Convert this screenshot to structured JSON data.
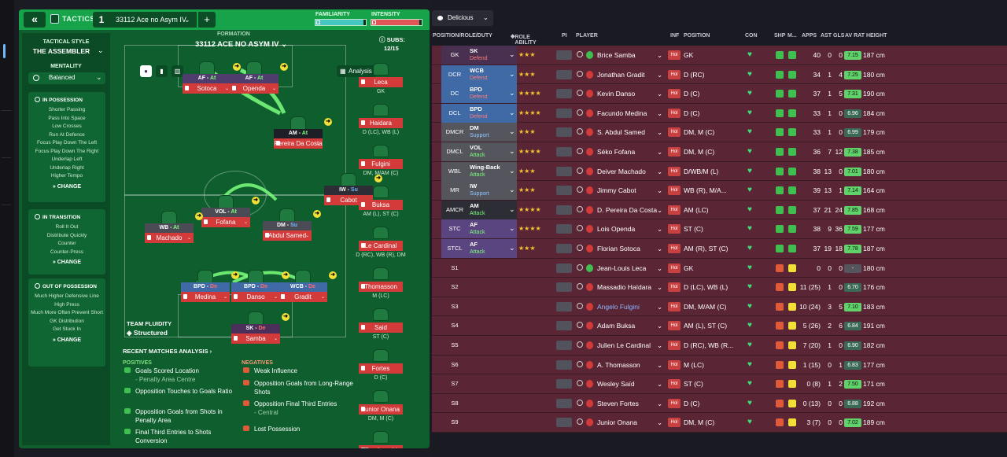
{
  "tactics_panel": {
    "back_icon": "«",
    "label": "TACTICS",
    "slot_number": "1",
    "tactic_name": "33112 Ace no Asym IV",
    "add": "+",
    "familiarity_label": "FAMILIARITY",
    "intensity_label": "INTENSITY",
    "familiarity_level": 0.95,
    "intensity_level": 0.95,
    "colors": {
      "panel": "#0e5e2e",
      "bar": "#16a34a",
      "familiarity": "#46c6c0",
      "intensity": "#e05555"
    }
  },
  "sidebar": {
    "tactical_style_label": "TACTICAL STYLE",
    "tactical_style_value": "THE ASSEMBLER",
    "mentality_label": "MENTALITY",
    "mentality_value": "Balanced",
    "in_possession": {
      "title": "IN POSSESSION",
      "items": [
        "Shorter Passing",
        "Pass Into Space",
        "Low Crosses",
        "Run At Defence",
        "Focus Play Down The Left",
        "Focus Play Down The Right",
        "Underlap Left",
        "Underlap Right",
        "Higher Tempo"
      ],
      "change": "CHANGE"
    },
    "in_transition": {
      "title": "IN TRANSITION",
      "items": [
        "Roll It Out",
        "Distribute Quickly",
        "Counter",
        "Counter-Press"
      ],
      "change": "CHANGE"
    },
    "out_of_possession": {
      "title": "OUT OF POSSESSION",
      "items": [
        "Much Higher Defensive Line",
        "High Press",
        "Much More Often Prevent Short GK Distribution",
        "Get Stuck In"
      ],
      "change": "CHANGE"
    }
  },
  "formation": {
    "label": "FORMATION",
    "name": "33112 ACE NO ASYM IV",
    "analysis_label": "Analysis",
    "subs_label": "SUBS:",
    "subs_count": "12/15",
    "team_fluidity_label": "TEAM FLUIDITY",
    "team_fluidity_value": "Structured",
    "players": [
      {
        "role": "AF",
        "duty": "At",
        "name": "Sotoca"
      },
      {
        "role": "AF",
        "duty": "At",
        "name": "Openda"
      },
      {
        "role": "AM",
        "duty": "At",
        "name": "Pereira Da Costa"
      },
      {
        "role": "IW",
        "duty": "Su",
        "name": "Cabot"
      },
      {
        "role": "VOL",
        "duty": "At",
        "name": "Fofana"
      },
      {
        "role": "WB",
        "duty": "At",
        "name": "Machado"
      },
      {
        "role": "DM",
        "duty": "Su",
        "name": "Abdul Samed"
      },
      {
        "role": "BPD",
        "duty": "De",
        "name": "Medina"
      },
      {
        "role": "BPD",
        "duty": "De",
        "name": "Danso"
      },
      {
        "role": "WCB",
        "duty": "De",
        "name": "Gradit"
      },
      {
        "role": "SK",
        "duty": "De",
        "name": "Samba"
      }
    ],
    "subs": [
      {
        "name": "Leca",
        "pos": "GK"
      },
      {
        "name": "Haidara",
        "pos": "D (LC), WB (L)"
      },
      {
        "name": "Fulgini",
        "pos": "DM, M/AM (C)"
      },
      {
        "name": "Buksa",
        "pos": "AM (L), ST (C)"
      },
      {
        "name": "Le Cardinal",
        "pos": "D (RC), WB (R), DM"
      },
      {
        "name": "Thomasson",
        "pos": "M (LC)"
      },
      {
        "name": "Said",
        "pos": "ST (C)"
      },
      {
        "name": "Fortes",
        "pos": "D (C)"
      },
      {
        "name": "Junior Onana",
        "pos": "DM, M (C)"
      },
      {
        "name": "Frankowski",
        "pos": ""
      }
    ]
  },
  "analysis": {
    "title": "RECENT MATCHES ANALYSIS",
    "positives_label": "POSITIVES",
    "negatives_label": "NEGATIVES",
    "positives": [
      {
        "text": "Goals Scored Location",
        "sub": "- Penalty Area Centre"
      },
      {
        "text": "Opposition Touches to Goals Ratio",
        "sub": ""
      },
      {
        "text": "Opposition Goals from Shots in Penalty Area",
        "sub": ""
      },
      {
        "text": "Final Third Entries to Shots Conversion",
        "sub": ""
      }
    ],
    "negatives": [
      {
        "text": "Weak Influence",
        "sub": ""
      },
      {
        "text": "Opposition Goals from Long-Range Shots",
        "sub": ""
      },
      {
        "text": "Opposition Final Third Entries",
        "sub": "- Central"
      },
      {
        "text": "Lost Possession",
        "sub": ""
      }
    ]
  },
  "squad": {
    "view_label": "Delicious",
    "headers": {
      "position": "POSITION/ROLE/DUTY",
      "role_ability": "ROLE ABILITY",
      "pi": "PI",
      "player": "PLAYER",
      "inf": "INF",
      "pos": "POSITION",
      "con": "CON",
      "shp": "SHP",
      "m": "M...",
      "apps": "APPS",
      "ast": "AST",
      "gls": "GLS",
      "avrat": "AV RAT",
      "height": "HEIGHT"
    },
    "rows": [
      {
        "slot": "GK",
        "role": "SK",
        "duty": "Defend",
        "stars": "★★★",
        "player": "Brice Samba",
        "inf": "Hol",
        "pos": "GK",
        "apps": "40",
        "ast": "0",
        "gls": "0",
        "rat": "7.15",
        "height": "187 cm"
      },
      {
        "slot": "DCR",
        "role": "WCB",
        "duty": "Defend",
        "stars": "★★★",
        "player": "Jonathan Gradit",
        "inf": "Hol",
        "pos": "D (RC)",
        "apps": "34",
        "ast": "1",
        "gls": "4",
        "rat": "7.25",
        "height": "180 cm"
      },
      {
        "slot": "DC",
        "role": "BPD",
        "duty": "Defend",
        "stars": "★★★★",
        "player": "Kevin Danso",
        "inf": "Hol",
        "pos": "D (C)",
        "apps": "37",
        "ast": "1",
        "gls": "5",
        "rat": "7.31",
        "height": "190 cm"
      },
      {
        "slot": "DCL",
        "role": "BPD",
        "duty": "Defend",
        "stars": "★★★★",
        "player": "Facundo Medina",
        "inf": "Hol",
        "pos": "D (C)",
        "apps": "33",
        "ast": "1",
        "gls": "0",
        "rat": "6.96",
        "height": "184 cm"
      },
      {
        "slot": "DMCR",
        "role": "DM",
        "duty": "Support",
        "stars": "★★★",
        "player": "S. Abdul Samed",
        "inf": "Hol",
        "pos": "DM, M (C)",
        "apps": "33",
        "ast": "1",
        "gls": "0",
        "rat": "6.99",
        "height": "179 cm"
      },
      {
        "slot": "DMCL",
        "role": "VOL",
        "duty": "Attack",
        "stars": "★★★★",
        "player": "Séko Fofana",
        "inf": "Hol",
        "pos": "DM, M (C)",
        "apps": "36",
        "ast": "7",
        "gls": "12",
        "rat": "7.38",
        "height": "185 cm"
      },
      {
        "slot": "WBL",
        "role": "Wing-Back",
        "duty": "Attack",
        "stars": "★★★",
        "player": "Deiver Machado",
        "inf": "Hol",
        "pos": "D/WB/M (L)",
        "apps": "38",
        "ast": "13",
        "gls": "0",
        "rat": "7.01",
        "height": "180 cm"
      },
      {
        "slot": "MR",
        "role": "IW",
        "duty": "Support",
        "stars": "★★★",
        "player": "Jimmy Cabot",
        "inf": "Hol",
        "pos": "WB (R), M/A...",
        "apps": "39",
        "ast": "13",
        "gls": "1",
        "rat": "7.14",
        "height": "164 cm"
      },
      {
        "slot": "AMCR",
        "role": "AM",
        "duty": "Attack",
        "stars": "★★★★",
        "player": "D. Pereira Da Costa",
        "inf": "Hol",
        "pos": "AM (LC)",
        "apps": "37",
        "ast": "21",
        "gls": "24",
        "rat": "7.85",
        "height": "168 cm"
      },
      {
        "slot": "STC",
        "role": "AF",
        "duty": "Attack",
        "stars": "★★★★",
        "player": "Lois Openda",
        "inf": "Hol",
        "pos": "ST (C)",
        "apps": "38",
        "ast": "9",
        "gls": "36",
        "rat": "7.59",
        "height": "177 cm"
      },
      {
        "slot": "STCL",
        "role": "AF",
        "duty": "Attack",
        "stars": "★★★",
        "player": "Florian Sotoca",
        "inf": "Hol",
        "pos": "AM (R), ST (C)",
        "apps": "37",
        "ast": "19",
        "gls": "18",
        "rat": "7.78",
        "height": "187 cm"
      },
      {
        "slot": "S1",
        "role": "",
        "duty": "",
        "stars": "",
        "player": "Jean-Louis Leca",
        "inf": "Hol",
        "pos": "GK",
        "apps": "0",
        "ast": "0",
        "gls": "0",
        "rat": "-",
        "height": "180 cm"
      },
      {
        "slot": "S2",
        "role": "",
        "duty": "",
        "stars": "",
        "player": "Massadio Haïdara",
        "inf": "Hol",
        "pos": "D (LC), WB (L)",
        "apps": "11 (25)",
        "ast": "1",
        "gls": "0",
        "rat": "6.70",
        "height": "176 cm"
      },
      {
        "slot": "S3",
        "role": "",
        "duty": "",
        "stars": "",
        "player": "Angelo Fulgini",
        "inf": "Hol",
        "pos": "DM, M/AM (C)",
        "apps": "10 (24)",
        "ast": "3",
        "gls": "5",
        "rat": "7.10",
        "height": "183 cm"
      },
      {
        "slot": "S4",
        "role": "",
        "duty": "",
        "stars": "",
        "player": "Adam Buksa",
        "inf": "Hol",
        "pos": "AM (L), ST (C)",
        "apps": "5 (26)",
        "ast": "2",
        "gls": "6",
        "rat": "6.84",
        "height": "191 cm"
      },
      {
        "slot": "S5",
        "role": "",
        "duty": "",
        "stars": "",
        "player": "Julien Le Cardinal",
        "inf": "Hol",
        "pos": "D (RC), WB (R...",
        "apps": "7 (20)",
        "ast": "1",
        "gls": "0",
        "rat": "6.90",
        "height": "182 cm"
      },
      {
        "slot": "S6",
        "role": "",
        "duty": "",
        "stars": "",
        "player": "A. Thomasson",
        "inf": "Hol",
        "pos": "M (LC)",
        "apps": "1 (15)",
        "ast": "0",
        "gls": "1",
        "rat": "6.83",
        "height": "177 cm"
      },
      {
        "slot": "S7",
        "role": "",
        "duty": "",
        "stars": "",
        "player": "Wesley Saïd",
        "inf": "Hol",
        "pos": "ST (C)",
        "apps": "0 (8)",
        "ast": "1",
        "gls": "2",
        "rat": "7.50",
        "height": "171 cm"
      },
      {
        "slot": "S8",
        "role": "",
        "duty": "",
        "stars": "",
        "player": "Steven Fortes",
        "inf": "Hol",
        "pos": "D (C)",
        "apps": "0 (13)",
        "ast": "0",
        "gls": "0",
        "rat": "6.88",
        "height": "192 cm"
      },
      {
        "slot": "S9",
        "role": "",
        "duty": "",
        "stars": "",
        "player": "Junior Onana",
        "inf": "Hol",
        "pos": "DM, M (C)",
        "apps": "3 (7)",
        "ast": "0",
        "gls": "0",
        "rat": "7.02",
        "height": "189 cm"
      }
    ]
  }
}
